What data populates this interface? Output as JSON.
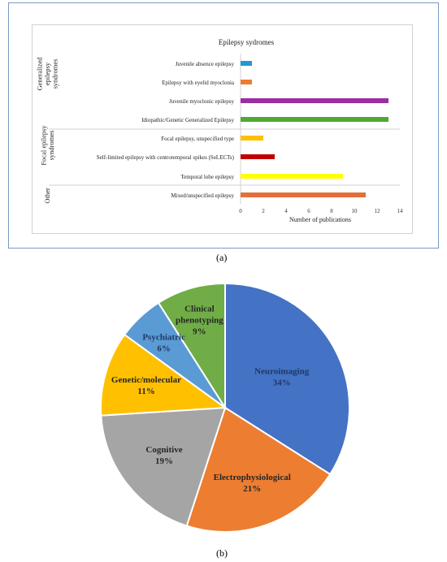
{
  "chart_data": [
    {
      "type": "bar",
      "orientation": "horizontal",
      "title": "Epilepsy sydromes",
      "xlabel": "Number of publications",
      "ylabel": "",
      "xlim": [
        0,
        14
      ],
      "x_ticks": [
        "0",
        "2",
        "4",
        "6",
        "8",
        "10",
        "12",
        "14"
      ],
      "grid": false,
      "legend": "none",
      "groups": [
        {
          "label": "Generalized epilepsy syndromes",
          "label_lines": [
            "Generalized",
            "epilepsy",
            "syndromes"
          ],
          "members": [
            0,
            1,
            2,
            3
          ]
        },
        {
          "label": "Focal epilepsy syndromes",
          "label_lines": [
            "Focal epilepsy",
            "syndromes"
          ],
          "members": [
            4,
            5,
            6
          ]
        },
        {
          "label": "Other",
          "label_lines": [
            "Other"
          ],
          "members": [
            7
          ]
        }
      ],
      "categories": [
        "Juvenile absence epilepsy",
        "Epilepsy with eyelid myoclonia",
        "Juvenile myoclonic epilepsy",
        "Idiopathic/Genetic Generalized Epilepsy",
        "Focal epilepsy, unspecified type",
        "Self-limited epilepsy with centrotemporal spikes (SeLECTs)",
        "Temporal lobe epilepsy",
        "Mixed/unspecified epilepsy"
      ],
      "values": [
        1,
        1,
        13,
        13,
        2,
        3,
        9,
        11
      ],
      "colors": [
        "#1f9ad6",
        "#ed7d31",
        "#9b2ea0",
        "#4eaa35",
        "#ffc000",
        "#c00000",
        "#ffff00",
        "#e2703a"
      ]
    },
    {
      "type": "pie",
      "title": "",
      "slices": [
        {
          "label": "Neuroimaging",
          "value": 34,
          "display": "34%",
          "color": "#4472c4",
          "label_color": "#1f3864"
        },
        {
          "label": "Electrophysiological",
          "value": 21,
          "display": "21%",
          "color": "#ed7d31",
          "label_color": "#262626"
        },
        {
          "label": "Cognitive",
          "value": 19,
          "display": "19%",
          "color": "#a5a5a5",
          "label_color": "#262626"
        },
        {
          "label": "Genetic/molecular",
          "value": 11,
          "display": "11%",
          "color": "#ffc000",
          "label_color": "#262626"
        },
        {
          "label": "Psychiatric",
          "value": 6,
          "display": "6%",
          "color": "#5b9bd5",
          "label_color": "#1f3864"
        },
        {
          "label": "Clinical phenotyping",
          "value": 9,
          "display": "9%",
          "color": "#70ad47",
          "label_color": "#262626",
          "label_lines": [
            "Clinical",
            "phenotyping"
          ]
        }
      ]
    }
  ],
  "captions": {
    "a": "(a)",
    "b": "(b)"
  }
}
